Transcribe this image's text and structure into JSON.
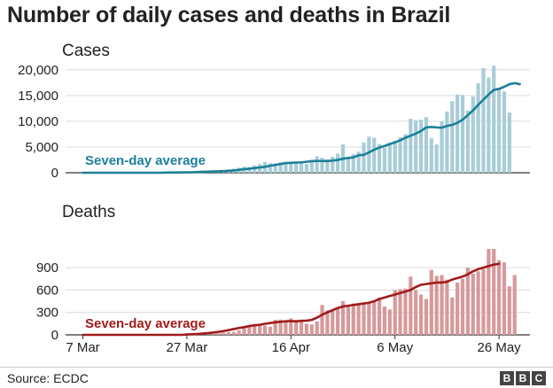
{
  "title": "Number of daily cases and deaths in Brazil",
  "source": "Source: ECDC",
  "logo": [
    "B",
    "B",
    "C"
  ],
  "colors": {
    "cases_bar": "#a9cdd7",
    "cases_line": "#1c7f98",
    "deaths_bar": "#d7999b",
    "deaths_line": "#a01b1b",
    "grid": "#dcdcdc",
    "text": "#222222"
  },
  "chart_data": [
    {
      "type": "bar",
      "title": "Cases",
      "annotation": "Seven-day average",
      "x_tick_labels": [
        "7 Mar",
        "27 Mar",
        "16 Apr",
        "6 May",
        "26 May"
      ],
      "x_tick_day_index": [
        0,
        20,
        40,
        60,
        80
      ],
      "yticks": [
        0,
        5000,
        10000,
        15000,
        20000
      ],
      "ytick_labels": [
        "0",
        "5,000",
        "10,000",
        "15,000",
        "20,000"
      ],
      "ylim": [
        0,
        21000
      ],
      "start_day_index": 0,
      "values": [
        0,
        0,
        0,
        0,
        0,
        0,
        0,
        0,
        0,
        0,
        0,
        0,
        0,
        0,
        0,
        0,
        40,
        60,
        100,
        150,
        200,
        230,
        250,
        300,
        350,
        400,
        480,
        550,
        700,
        800,
        1000,
        1200,
        1100,
        1400,
        1700,
        2100,
        1900,
        1800,
        2000,
        1800,
        1900,
        1900,
        2200,
        1700,
        2500,
        3200,
        2900,
        2600,
        3100,
        3700,
        5500,
        2900,
        3600,
        4100,
        5900,
        7000,
        6800,
        5600,
        4800,
        5800,
        6200,
        6900,
        7500,
        10500,
        10200,
        10300,
        10800,
        6700,
        5500,
        10000,
        11900,
        13900,
        15200,
        15100,
        12100,
        14800,
        17400,
        20300,
        18500,
        20800,
        16500,
        15800,
        11700
      ],
      "avg_start_index": 16,
      "seven_day_average": [
        0,
        0,
        0,
        0,
        0,
        0,
        0,
        0,
        0,
        0,
        0,
        0,
        0,
        0,
        0,
        0,
        40,
        48,
        57,
        70,
        84,
        104,
        145,
        180,
        215,
        245,
        270,
        310,
        365,
        445,
        560,
        675,
        790,
        910,
        1020,
        1150,
        1350,
        1530,
        1690,
        1880,
        1920,
        1980,
        2020,
        2130,
        2250,
        2300,
        2280,
        2270,
        2360,
        2480,
        2720,
        2880,
        2980,
        3390,
        3470,
        3950,
        4470,
        4890,
        5210,
        5570,
        5900,
        6300,
        6800,
        7200,
        7600,
        8100,
        8800,
        8900,
        8800,
        8750,
        9100,
        9300,
        9700,
        10300,
        11200,
        12100,
        13200,
        14200,
        15200,
        16100,
        16300,
        16700,
        17200,
        17400,
        17200
      ]
    },
    {
      "type": "bar",
      "title": "Deaths",
      "annotation": "Seven-day average",
      "x_tick_labels": [
        "7 Mar",
        "27 Mar",
        "16 Apr",
        "6 May",
        "26 May"
      ],
      "x_tick_day_index": [
        0,
        20,
        40,
        60,
        80
      ],
      "yticks": [
        0,
        300,
        600,
        900
      ],
      "ytick_labels": [
        "0",
        "300",
        "600",
        "900"
      ],
      "ylim": [
        0,
        1150
      ],
      "start_day_index": 0,
      "values": [
        0,
        0,
        0,
        0,
        0,
        0,
        0,
        0,
        0,
        0,
        0,
        0,
        0,
        0,
        0,
        0,
        0,
        0,
        0,
        0,
        0,
        0,
        0,
        5,
        10,
        15,
        22,
        30,
        35,
        40,
        60,
        100,
        110,
        130,
        140,
        125,
        110,
        200,
        205,
        190,
        220,
        200,
        180,
        150,
        140,
        180,
        400,
        330,
        340,
        350,
        450,
        400,
        420,
        420,
        430,
        420,
        450,
        500,
        380,
        340,
        600,
        610,
        620,
        780,
        600,
        540,
        480,
        870,
        790,
        800,
        740,
        500,
        700,
        750,
        900,
        820,
        850,
        880,
        1150,
        1150,
        1000,
        970,
        650,
        800
      ],
      "avg_start_index": 20,
      "seven_day_average": [
        0,
        0,
        0,
        0,
        0,
        0,
        0,
        0,
        0,
        0,
        0,
        0,
        0,
        0,
        0,
        0,
        0,
        0,
        0,
        0,
        5,
        8,
        12,
        17,
        23,
        30,
        40,
        50,
        63,
        78,
        92,
        103,
        118,
        128,
        135,
        148,
        158,
        168,
        175,
        182,
        185,
        180,
        188,
        190,
        200,
        230,
        270,
        300,
        330,
        360,
        380,
        390,
        400,
        410,
        420,
        430,
        450,
        480,
        500,
        520,
        540,
        560,
        580,
        600,
        640,
        670,
        680,
        690,
        700,
        700,
        710,
        740,
        760,
        780,
        810,
        850,
        880,
        900,
        920,
        940,
        950
      ]
    }
  ]
}
